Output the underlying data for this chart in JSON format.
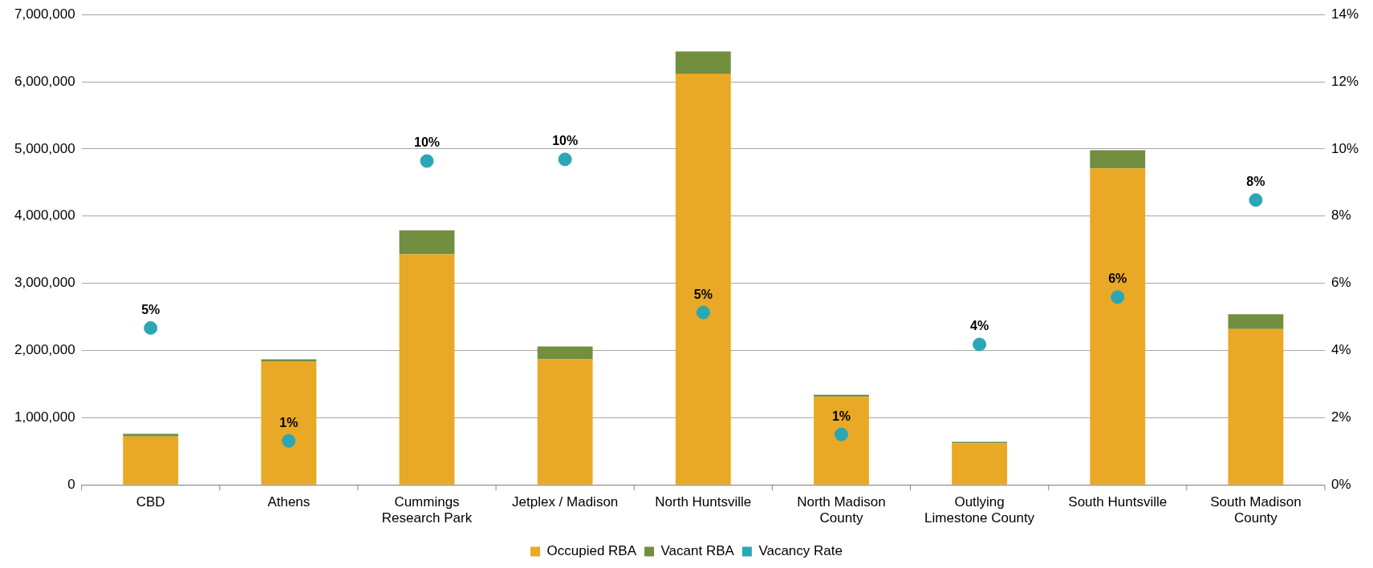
{
  "chart_data": {
    "type": "bar",
    "stacked": true,
    "categories": [
      "CBD",
      "Athens",
      "Cummings Research Park",
      "Jetplex / Madison",
      "North Huntsville",
      "North Madison County",
      "Outlying Limestone County",
      "South Huntsville",
      "South Madison County"
    ],
    "series": [
      {
        "name": "Occupied RBA",
        "color": "#e9a825",
        "values": [
          720000,
          1840000,
          3430000,
          1870000,
          6120000,
          1310000,
          620000,
          4710000,
          2320000
        ]
      },
      {
        "name": "Vacant RBA",
        "color": "#718f3f",
        "values": [
          40000,
          30000,
          360000,
          190000,
          330000,
          30000,
          20000,
          270000,
          220000
        ]
      },
      {
        "name": "Vacancy Rate",
        "type": "scatter",
        "axis": "y2",
        "color": "#2aa6b5",
        "marker": "circle",
        "values": [
          4.67,
          1.31,
          9.64,
          9.69,
          5.13,
          1.5,
          4.18,
          5.59,
          8.48
        ],
        "value_labels": [
          "5%",
          "1%",
          "10%",
          "10%",
          "5%",
          "1%",
          "4%",
          "6%",
          "8%"
        ]
      }
    ],
    "ylim": [
      0,
      7000000
    ],
    "yticks": [
      {
        "value": 0,
        "label": "0"
      },
      {
        "value": 1000000,
        "label": "1,000,000"
      },
      {
        "value": 2000000,
        "label": "2,000,000"
      },
      {
        "value": 3000000,
        "label": "3,000,000"
      },
      {
        "value": 4000000,
        "label": "4,000,000"
      },
      {
        "value": 5000000,
        "label": "5,000,000"
      },
      {
        "value": 6000000,
        "label": "6,000,000"
      },
      {
        "value": 7000000,
        "label": "7,000,000"
      }
    ],
    "y2lim": [
      0,
      14
    ],
    "y2ticks": [
      {
        "value": 0,
        "label": "0%"
      },
      {
        "value": 2,
        "label": "2%"
      },
      {
        "value": 4,
        "label": "4%"
      },
      {
        "value": 6,
        "label": "6%"
      },
      {
        "value": 8,
        "label": "8%"
      },
      {
        "value": 10,
        "label": "10%"
      },
      {
        "value": 12,
        "label": "12%"
      },
      {
        "value": 14,
        "label": "14%"
      }
    ],
    "grid": "y",
    "legend": "bottom"
  }
}
